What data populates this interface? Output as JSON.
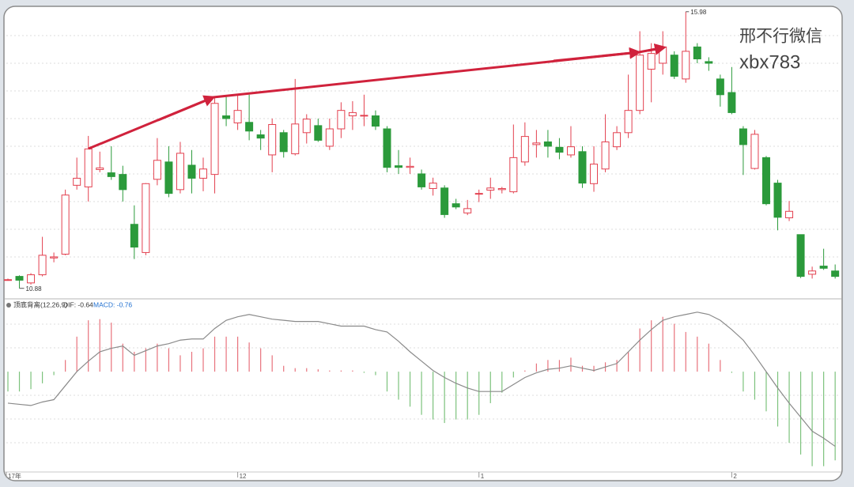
{
  "chart_data": [
    {
      "type": "candlestick",
      "open": [
        11.04,
        11.1,
        10.98,
        11.13,
        11.44,
        11.51,
        12.78,
        12.75,
        13.07,
        13.01,
        12.98,
        12.06,
        11.54,
        12.89,
        13.21,
        12.7,
        13.15,
        12.91,
        12.98,
        14.06,
        13.93,
        13.94,
        13.71,
        13.34,
        13.75,
        13.36,
        13.75,
        13.88,
        13.5,
        13.82,
        14.06,
        14.06,
        14.06,
        13.82,
        13.14,
        13.11,
        12.99,
        12.72,
        12.73,
        12.44,
        12.27,
        12.63,
        12.69,
        12.7,
        12.66,
        13.21,
        13.53,
        13.58,
        13.48,
        13.34,
        13.4,
        12.81,
        13.08,
        13.49,
        13.75,
        14.16,
        14.92,
        15.03,
        15.18,
        14.74,
        15.33,
        15.06,
        14.74,
        14.49,
        13.82,
        13.09,
        13.29,
        12.82,
        12.18,
        11.87,
        11.14,
        11.29,
        11.2
      ],
      "close": [
        11.04,
        11.03,
        11.13,
        11.49,
        11.46,
        12.6,
        12.91,
        13.45,
        13.1,
        12.94,
        12.7,
        11.64,
        12.81,
        13.24,
        12.63,
        13.37,
        12.91,
        13.08,
        14.29,
        14.01,
        14.16,
        13.78,
        13.65,
        13.9,
        13.4,
        13.91,
        14.0,
        13.61,
        13.82,
        14.16,
        14.12,
        14.07,
        13.87,
        13.11,
        13.11,
        13.13,
        12.75,
        12.82,
        12.24,
        12.38,
        12.35,
        12.63,
        12.73,
        12.72,
        13.29,
        13.68,
        13.56,
        13.5,
        13.39,
        13.49,
        12.82,
        13.17,
        13.58,
        13.75,
        14.16,
        15.18,
        15.21,
        15.33,
        14.79,
        15.25,
        15.11,
        15.03,
        14.45,
        14.12,
        13.53,
        13.72,
        12.44,
        12.19,
        12.3,
        11.1,
        11.2,
        11.25,
        11.1
      ],
      "high": [
        11.06,
        11.12,
        11.16,
        11.83,
        11.54,
        12.7,
        13.29,
        13.69,
        13.4,
        13.5,
        13.14,
        12.41,
        12.82,
        13.65,
        13.5,
        13.58,
        13.43,
        13.29,
        14.42,
        14.41,
        14.45,
        14.45,
        13.8,
        14.01,
        13.8,
        14.74,
        14.09,
        14.01,
        14.01,
        14.31,
        14.33,
        14.45,
        14.16,
        13.87,
        13.43,
        13.29,
        13.07,
        12.92,
        12.78,
        12.53,
        12.51,
        12.7,
        12.92,
        12.75,
        13.9,
        13.94,
        13.8,
        13.8,
        13.65,
        13.87,
        13.5,
        13.5,
        14.09,
        13.87,
        14.82,
        15.62,
        15.4,
        15.62,
        15.25,
        15.98,
        15.4,
        15.14,
        14.82,
        14.96,
        13.87,
        13.8,
        13.32,
        12.88,
        12.49,
        11.87,
        11.28,
        11.61,
        11.32
      ],
      "low": [
        11.02,
        10.88,
        10.95,
        11.1,
        11.36,
        11.49,
        12.7,
        12.48,
        13.02,
        12.88,
        12.48,
        11.42,
        11.49,
        12.78,
        12.56,
        12.63,
        12.63,
        12.67,
        12.63,
        13.87,
        13.8,
        13.61,
        13.43,
        13.02,
        13.29,
        13.33,
        13.55,
        13.58,
        13.43,
        13.65,
        13.8,
        13.87,
        13.8,
        13.02,
        12.99,
        12.99,
        12.7,
        12.59,
        12.18,
        12.34,
        12.23,
        12.47,
        12.53,
        12.63,
        12.63,
        13.14,
        13.29,
        13.29,
        13.26,
        13.29,
        12.73,
        12.66,
        13.02,
        13.43,
        13.65,
        14.09,
        14.31,
        14.82,
        14.74,
        14.67,
        15.03,
        14.89,
        14.23,
        14.09,
        12.97,
        13.07,
        12.41,
        11.95,
        12.12,
        11.07,
        11.06,
        11.22,
        11.06
      ],
      "up_color": "#e3404f",
      "down_color": "#2b9a3b",
      "ylim": [
        10.73,
        16.05
      ],
      "watermark": [
        "邢不行微信",
        "xbx783"
      ]
    },
    {
      "type": "macd",
      "title": "顶底背离(12,26,9)",
      "categories": [
        "17年",
        null,
        null,
        null,
        null,
        null,
        null,
        null,
        null,
        null,
        null,
        null,
        null,
        null,
        null,
        null,
        null,
        null,
        null,
        null,
        "12",
        null,
        null,
        null,
        null,
        null,
        null,
        null,
        null,
        null,
        null,
        null,
        null,
        null,
        null,
        null,
        null,
        null,
        null,
        null,
        null,
        "1",
        null,
        null,
        null,
        null,
        null,
        null,
        null,
        null,
        null,
        null,
        null,
        null,
        null,
        null,
        null,
        null,
        null,
        null,
        null,
        null,
        null,
        "2",
        null,
        null,
        null,
        null,
        null,
        null,
        null,
        null,
        null
      ],
      "ylim": [
        -0.88,
        0.59
      ],
      "series": [
        {
          "name": "DIF: -0.64",
          "color": "#8a8a8a",
          "legend_color": "#333333",
          "values": [
            -0.27,
            -0.28,
            -0.29,
            -0.26,
            -0.24,
            -0.12,
            0,
            0.09,
            0.17,
            0.2,
            0.22,
            0.14,
            0.18,
            0.22,
            0.24,
            0.27,
            0.28,
            0.28,
            0.37,
            0.44,
            0.47,
            0.49,
            0.47,
            0.45,
            0.44,
            0.43,
            0.43,
            0.43,
            0.41,
            0.39,
            0.39,
            0.39,
            0.36,
            0.34,
            0.26,
            0.17,
            0.09,
            0.01,
            -0.05,
            -0.1,
            -0.14,
            -0.17,
            -0.17,
            -0.17,
            -0.11,
            -0.05,
            -0.01,
            0.02,
            0.03,
            0.05,
            0.03,
            0.01,
            0.04,
            0.07,
            0.17,
            0.27,
            0.36,
            0.44,
            0.47,
            0.49,
            0.51,
            0.49,
            0.44,
            0.36,
            0.27,
            0.14,
            0,
            -0.14,
            -0.27,
            -0.39,
            -0.51,
            -0.57,
            -0.64
          ]
        },
        {
          "name": "MACD: -0.76",
          "legend_color": "#1f6fd0",
          "up_color": "#e8727c",
          "down_color": "#7cc27c",
          "values": [
            -0.17,
            -0.17,
            -0.15,
            -0.1,
            -0.03,
            0.1,
            0.3,
            0.44,
            0.45,
            0.42,
            0.24,
            0.17,
            0.2,
            0.24,
            0.2,
            0.14,
            0.17,
            0.2,
            0.3,
            0.3,
            0.3,
            0.25,
            0.2,
            0.14,
            0.05,
            0.03,
            0.03,
            0.02,
            0.01,
            0.01,
            0.01,
            -0.01,
            -0.03,
            -0.17,
            -0.24,
            -0.3,
            -0.37,
            -0.41,
            -0.44,
            -0.41,
            -0.41,
            -0.37,
            -0.27,
            -0.18,
            -0.05,
            0.01,
            0.07,
            0.1,
            0.1,
            0.12,
            0.05,
            0.05,
            0.08,
            0.1,
            0.17,
            0.37,
            0.44,
            0.47,
            0.41,
            0.34,
            0.3,
            0.24,
            0.1,
            -0.01,
            -0.17,
            -0.24,
            -0.34,
            -0.47,
            -0.61,
            -0.71,
            -0.81,
            -0.81,
            -0.76
          ]
        }
      ]
    }
  ]
}
